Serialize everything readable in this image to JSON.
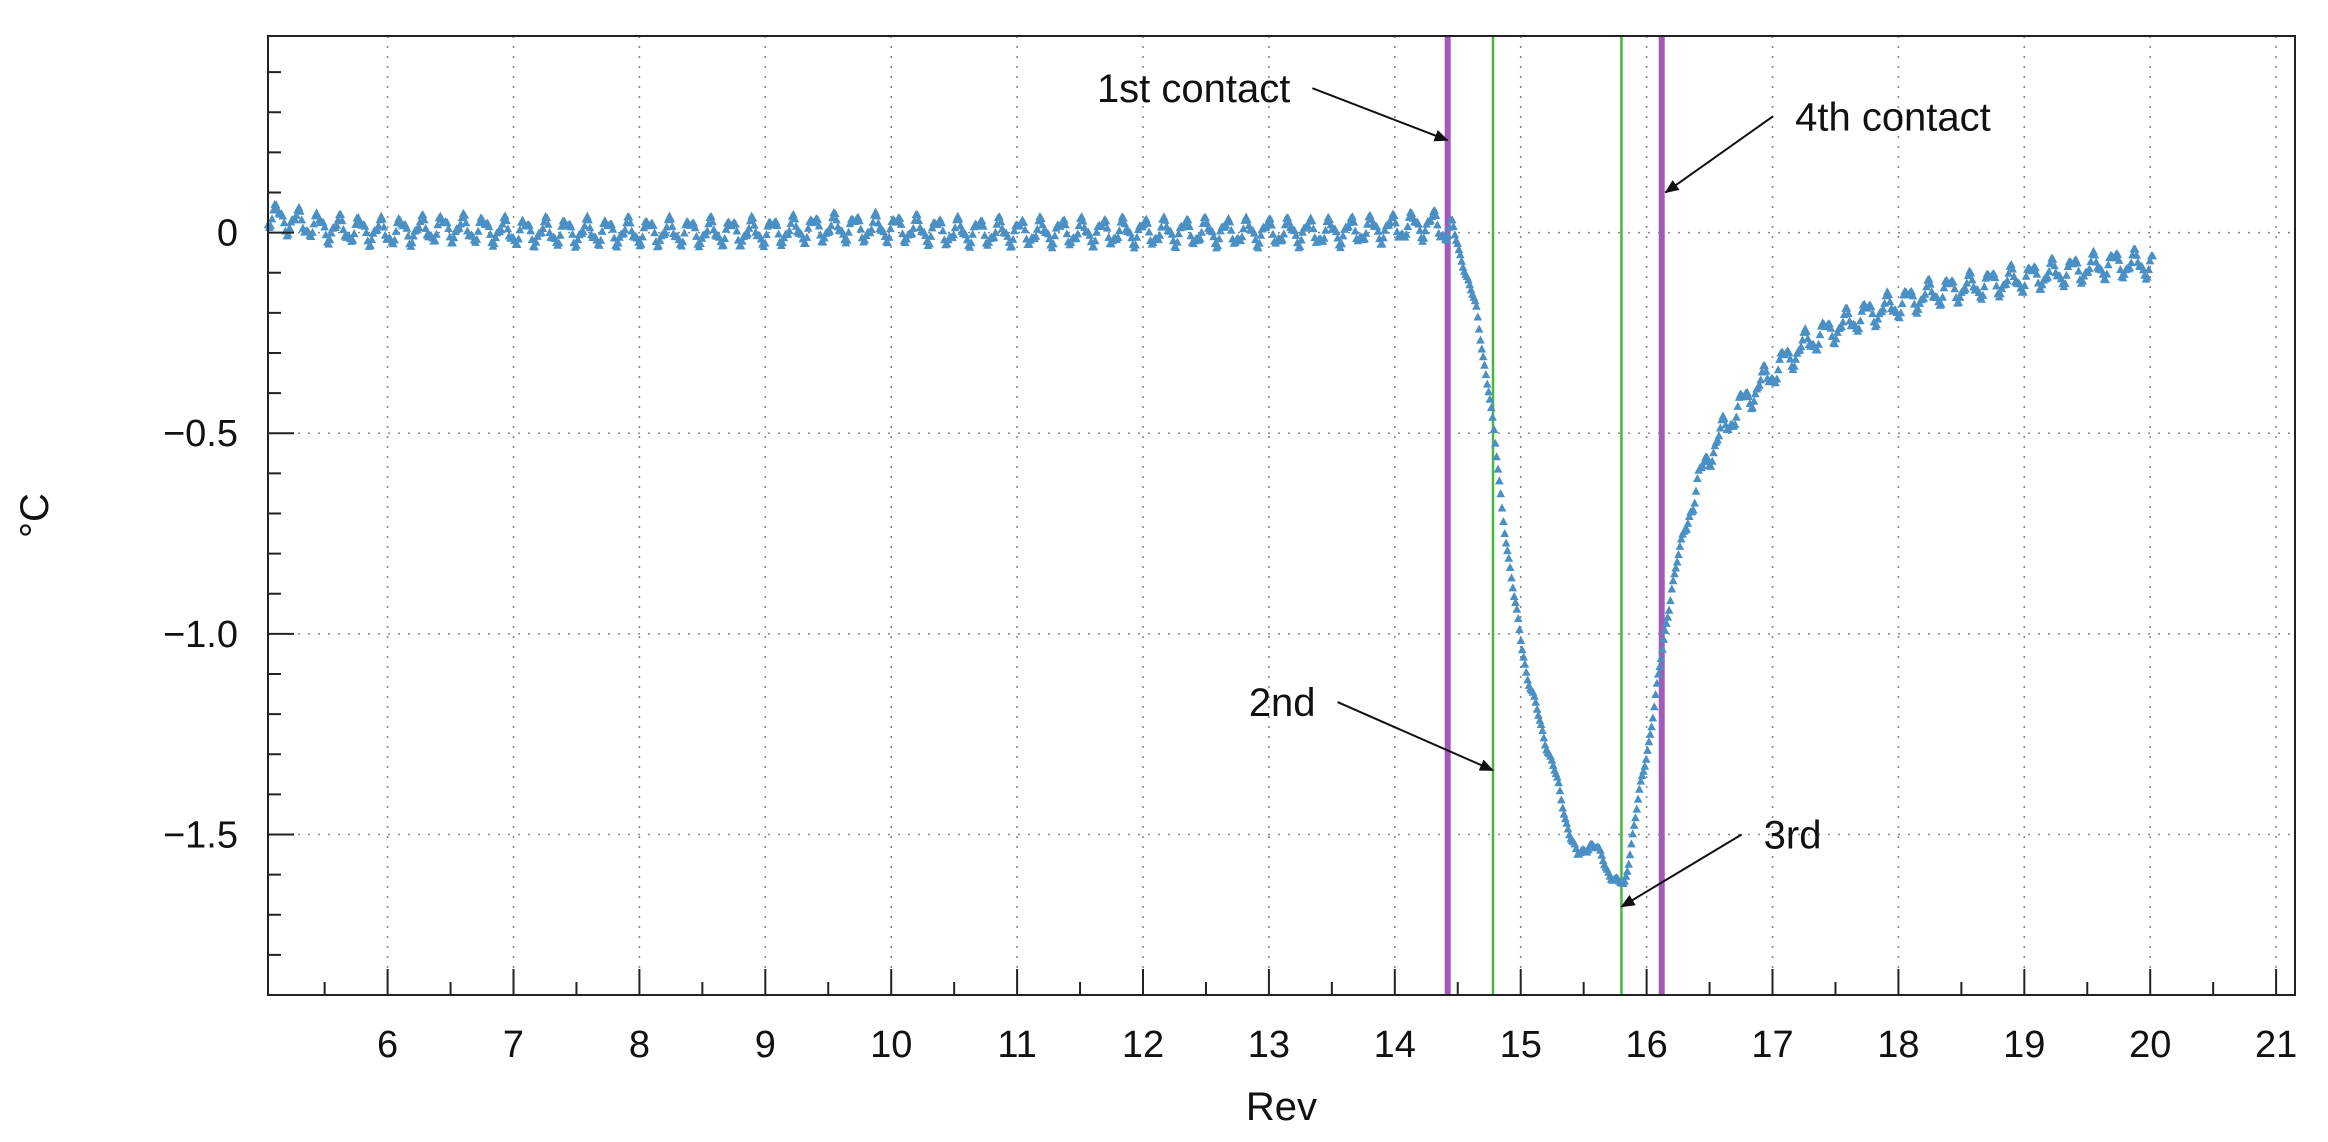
{
  "chart_data": {
    "type": "scatter",
    "xlabel": "Rev",
    "ylabel": "°C",
    "xlim": [
      5.05,
      21.15
    ],
    "ylim": [
      -1.9,
      0.49
    ],
    "x_ticks": [
      6,
      7,
      8,
      9,
      10,
      11,
      12,
      13,
      14,
      15,
      16,
      17,
      18,
      19,
      20,
      21
    ],
    "x_tick_labels": [
      "6",
      "7",
      "8",
      "9",
      "10",
      "11",
      "12",
      "13",
      "14",
      "15",
      "16",
      "17",
      "18",
      "19",
      "20",
      "21"
    ],
    "y_ticks": [
      0,
      -0.5,
      -1.0,
      -1.5
    ],
    "y_tick_labels": [
      "0",
      "−0.5",
      "−1.0",
      "−1.5"
    ],
    "grid": true,
    "marker": "triangle",
    "colors": {
      "series": "#4a90c4",
      "contact_outer": "#a259b8",
      "contact_inner": "#46b83c",
      "grid": "#888888",
      "axis": "#222222"
    },
    "series": [
      {
        "points": [
          [
            5.05,
            0.04
          ],
          [
            5.5,
            0.01
          ],
          [
            6.0,
            0.0
          ],
          [
            6.5,
            0.01
          ],
          [
            7.0,
            0.0
          ],
          [
            7.5,
            0.0
          ],
          [
            8.0,
            0.0
          ],
          [
            8.5,
            0.0
          ],
          [
            9.0,
            0.0
          ],
          [
            9.5,
            0.01
          ],
          [
            10.0,
            0.01
          ],
          [
            10.5,
            0.0
          ],
          [
            11.0,
            0.0
          ],
          [
            11.5,
            0.0
          ],
          [
            12.0,
            0.0
          ],
          [
            12.5,
            0.0
          ],
          [
            13.0,
            0.0
          ],
          [
            13.5,
            0.0
          ],
          [
            14.0,
            0.01
          ],
          [
            14.3,
            0.02
          ],
          [
            14.45,
            0.0
          ],
          [
            14.55,
            -0.08
          ],
          [
            14.65,
            -0.2
          ],
          [
            14.75,
            -0.4
          ],
          [
            14.85,
            -0.68
          ],
          [
            14.95,
            -0.92
          ],
          [
            15.05,
            -1.1
          ],
          [
            15.15,
            -1.22
          ],
          [
            15.25,
            -1.32
          ],
          [
            15.35,
            -1.45
          ],
          [
            15.45,
            -1.56
          ],
          [
            15.55,
            -1.52
          ],
          [
            15.65,
            -1.56
          ],
          [
            15.75,
            -1.62
          ],
          [
            15.82,
            -1.63
          ],
          [
            15.9,
            -1.48
          ],
          [
            16.0,
            -1.3
          ],
          [
            16.1,
            -1.1
          ],
          [
            16.2,
            -0.88
          ],
          [
            16.35,
            -0.68
          ],
          [
            16.5,
            -0.55
          ],
          [
            16.7,
            -0.45
          ],
          [
            16.9,
            -0.38
          ],
          [
            17.1,
            -0.32
          ],
          [
            17.3,
            -0.27
          ],
          [
            17.5,
            -0.24
          ],
          [
            17.7,
            -0.21
          ],
          [
            17.9,
            -0.19
          ],
          [
            18.1,
            -0.17
          ],
          [
            18.3,
            -0.15
          ],
          [
            18.5,
            -0.14
          ],
          [
            18.7,
            -0.13
          ],
          [
            18.9,
            -0.12
          ],
          [
            19.1,
            -0.11
          ],
          [
            19.3,
            -0.1
          ],
          [
            19.5,
            -0.09
          ],
          [
            19.7,
            -0.08
          ],
          [
            19.9,
            -0.08
          ],
          [
            20.02,
            -0.08
          ]
        ]
      }
    ],
    "contact_lines": [
      {
        "label": "1st contact",
        "x": 14.42,
        "kind": "outer"
      },
      {
        "label": "2nd",
        "x": 14.78,
        "kind": "inner"
      },
      {
        "label": "3rd",
        "x": 15.8,
        "kind": "inner"
      },
      {
        "label": "4th contact",
        "x": 16.12,
        "kind": "outer"
      }
    ],
    "annotations": [
      {
        "text": "1st contact",
        "text_x": 13.25,
        "text_y": 0.36,
        "arrow_from": [
          13.25,
          0.36
        ],
        "arrow_to": [
          14.42,
          0.23
        ]
      },
      {
        "text": "4th contact",
        "text_x": 17.1,
        "text_y": 0.29,
        "arrow_from": [
          17.1,
          0.29
        ],
        "arrow_to": [
          16.15,
          0.1
        ]
      },
      {
        "text": "2nd",
        "text_x": 13.45,
        "text_y": -1.17,
        "arrow_from": [
          13.45,
          -1.17
        ],
        "arrow_to": [
          14.78,
          -1.34
        ]
      },
      {
        "text": "3rd",
        "text_x": 16.85,
        "text_y": -1.5,
        "arrow_from": [
          16.85,
          -1.5
        ],
        "arrow_to": [
          15.8,
          -1.68
        ]
      }
    ]
  }
}
